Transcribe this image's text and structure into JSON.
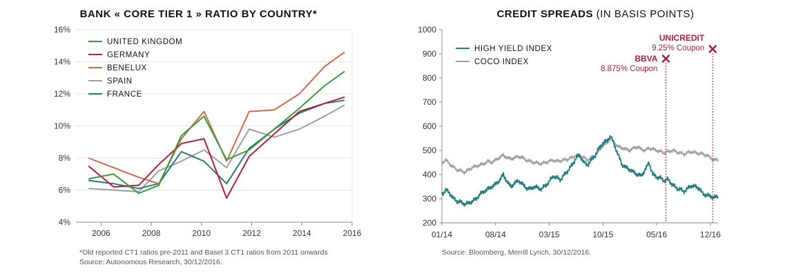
{
  "colors": {
    "uk": "#3a9a3a",
    "germany": "#b01e3c",
    "benelux": "#d2694a",
    "spain": "#9e9e9e",
    "france": "#1f7d7a",
    "high_yield": "#1f7d7a",
    "coco": "#9e9e9e",
    "annotation": "#b01e3c",
    "axis": "#888888"
  },
  "left": {
    "title": "BANK « CORE TIER 1 » RATIO BY COUNTRY*",
    "footnote_1": "*Old reported CT1 ratios pre-2011 and Basel 3 CT1 ratios from 2011 onwards",
    "footnote_2": "Source: Autonomous Research, 30/12/2016."
  },
  "right": {
    "title_main": "CREDIT SPREADS",
    "title_sub": "(IN BASIS POINTS)",
    "footnote": "Source: Bloomberg, Merrill Lynch, 30/12/2016."
  },
  "chart_data": [
    {
      "type": "line",
      "title": "BANK « CORE TIER 1 » RATIO BY COUNTRY*",
      "x": [
        2005.5,
        2006.5,
        2007.5,
        2008.3,
        2009.2,
        2010.1,
        2011.0,
        2011.9,
        2012.9,
        2013.9,
        2014.9,
        2015.7
      ],
      "xlim": [
        2005,
        2016
      ],
      "xticks": [
        2006,
        2008,
        2010,
        2012,
        2014,
        2016
      ],
      "ylim": [
        4,
        16
      ],
      "yticks": [
        "4%",
        "6%",
        "8%",
        "10%",
        "12%",
        "14%",
        "16%"
      ],
      "ytick_values": [
        4,
        6,
        8,
        10,
        12,
        14,
        16
      ],
      "grid": "horizontal",
      "legend": "top-left",
      "series": [
        {
          "name": "UNITED KINGDOM",
          "color_key": "uk",
          "values": [
            6.7,
            7.0,
            5.8,
            6.3,
            9.4,
            10.6,
            7.9,
            8.5,
            9.8,
            11.1,
            12.5,
            13.4
          ]
        },
        {
          "name": "GERMANY",
          "color_key": "germany",
          "values": [
            7.5,
            6.2,
            6.3,
            7.6,
            8.9,
            9.2,
            5.5,
            8.1,
            9.5,
            10.9,
            11.4,
            11.8
          ]
        },
        {
          "name": "BENELUX",
          "color_key": "benelux",
          "values": [
            8.0,
            7.4,
            6.8,
            6.4,
            9.2,
            10.9,
            7.8,
            10.9,
            11.0,
            12.0,
            13.7,
            14.6
          ]
        },
        {
          "name": "SPAIN",
          "color_key": "spain",
          "values": [
            6.1,
            6.0,
            5.9,
            7.2,
            7.8,
            8.5,
            7.4,
            9.8,
            9.3,
            9.8,
            10.6,
            11.3
          ]
        },
        {
          "name": "FRANCE",
          "color_key": "france",
          "values": [
            6.6,
            6.4,
            6.1,
            6.4,
            8.4,
            7.8,
            6.4,
            8.6,
            9.8,
            10.8,
            11.4,
            11.6
          ]
        }
      ]
    },
    {
      "type": "line",
      "title": "CREDIT SPREADS (IN BASIS POINTS)",
      "xlim": [
        0,
        36
      ],
      "xticks": [
        "01/14",
        "08/14",
        "03/15",
        "10/15",
        "05/16",
        "12/16"
      ],
      "xtick_positions": [
        0,
        7,
        14,
        21,
        28,
        35
      ],
      "ylim": [
        200,
        1000
      ],
      "yticks": [
        200,
        300,
        400,
        500,
        600,
        700,
        800,
        900,
        1000
      ],
      "grid": "none",
      "legend": "top-left",
      "series": [
        {
          "name": "HIGH YIELD INDEX",
          "color_key": "high_yield",
          "x": [
            0,
            0.5,
            1,
            1.5,
            2,
            2.5,
            3,
            3.5,
            4,
            4.5,
            5,
            5.5,
            6,
            6.5,
            7,
            7.5,
            8,
            8.5,
            9,
            9.5,
            10,
            10.5,
            11,
            11.5,
            12,
            12.5,
            13,
            13.5,
            14,
            14.5,
            15,
            15.5,
            16,
            16.5,
            17,
            17.5,
            18,
            18.5,
            19,
            19.5,
            20,
            20.5,
            21,
            21.5,
            22,
            22.5,
            23,
            23.5,
            24,
            24.5,
            25,
            25.5,
            26,
            26.5,
            27,
            27.5,
            28,
            28.5,
            29,
            29.5,
            30,
            30.5,
            31,
            31.5,
            32,
            32.5,
            33,
            33.5,
            34,
            34.5,
            35,
            35.5,
            36
          ],
          "values": [
            320,
            335,
            325,
            300,
            290,
            285,
            278,
            282,
            290,
            300,
            320,
            330,
            340,
            350,
            360,
            375,
            400,
            370,
            350,
            365,
            375,
            360,
            345,
            340,
            350,
            345,
            340,
            355,
            370,
            395,
            385,
            380,
            400,
            420,
            440,
            470,
            480,
            450,
            440,
            460,
            480,
            510,
            530,
            540,
            560,
            520,
            480,
            440,
            430,
            420,
            410,
            400,
            395,
            420,
            450,
            400,
            390,
            385,
            375,
            380,
            360,
            345,
            340,
            330,
            340,
            355,
            350,
            345,
            320,
            315,
            310,
            305,
            310
          ]
        },
        {
          "name": "COCO INDEX",
          "color_key": "coco",
          "x": [
            0,
            0.5,
            1,
            1.5,
            2,
            2.5,
            3,
            3.5,
            4,
            4.5,
            5,
            5.5,
            6,
            6.5,
            7,
            7.5,
            8,
            8.5,
            9,
            9.5,
            10,
            10.5,
            11,
            11.5,
            12,
            12.5,
            13,
            13.5,
            14,
            14.5,
            15,
            15.5,
            16,
            16.5,
            17,
            17.5,
            18,
            18.5,
            19,
            19.5,
            20,
            20.5,
            21,
            21.5,
            22,
            22.5,
            23,
            23.5,
            24,
            24.5,
            25,
            25.5,
            26,
            26.5,
            27,
            27.5,
            28,
            28.5,
            29,
            29.5,
            30,
            30.5,
            31,
            31.5,
            32,
            32.5,
            33,
            33.5,
            34,
            34.5,
            35,
            35.5,
            36
          ],
          "values": [
            450,
            460,
            445,
            430,
            420,
            415,
            410,
            420,
            430,
            435,
            440,
            445,
            455,
            450,
            460,
            470,
            480,
            470,
            465,
            470,
            475,
            470,
            460,
            455,
            450,
            448,
            445,
            450,
            455,
            460,
            455,
            458,
            460,
            465,
            470,
            480,
            475,
            470,
            460,
            470,
            480,
            500,
            520,
            530,
            550,
            530,
            515,
            510,
            505,
            500,
            510,
            515,
            505,
            500,
            510,
            505,
            500,
            495,
            490,
            495,
            500,
            495,
            490,
            485,
            490,
            495,
            490,
            488,
            485,
            480,
            470,
            460,
            462
          ]
        }
      ],
      "annotations": [
        {
          "name": "BBVA",
          "text": "8.875% Coupon",
          "x": 29.2,
          "y": 880
        },
        {
          "name": "UNICREDIT",
          "text": "9.25% Coupon",
          "x": 35.3,
          "y": 920
        }
      ]
    }
  ]
}
